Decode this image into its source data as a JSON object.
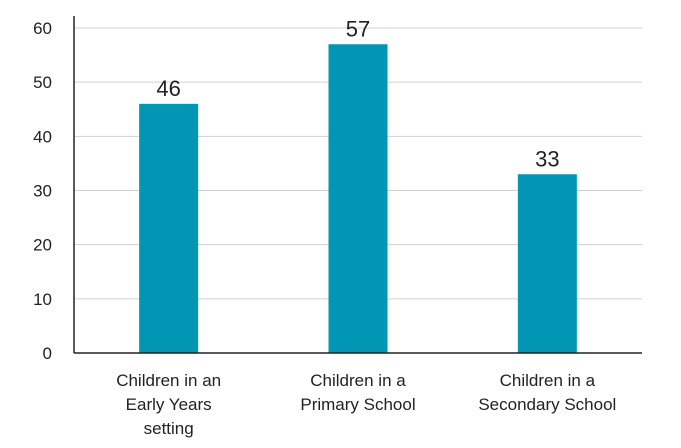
{
  "chart_data": {
    "type": "bar",
    "title": "",
    "xlabel": "",
    "ylabel": "",
    "categories": [
      [
        "Children in an",
        "Early Years",
        "setting"
      ],
      [
        "Children in a",
        "Primary School"
      ],
      [
        "Children in a",
        "Secondary School"
      ]
    ],
    "values": [
      46,
      57,
      33
    ],
    "data_labels": [
      "46",
      "57",
      "33"
    ],
    "yticks": [
      0,
      10,
      20,
      30,
      40,
      50,
      60
    ],
    "ytick_labels": [
      "0",
      "10",
      "20",
      "30",
      "40",
      "50",
      "60"
    ],
    "ylim": [
      0,
      60
    ],
    "grid": true,
    "bar_color": "#0096b4"
  }
}
